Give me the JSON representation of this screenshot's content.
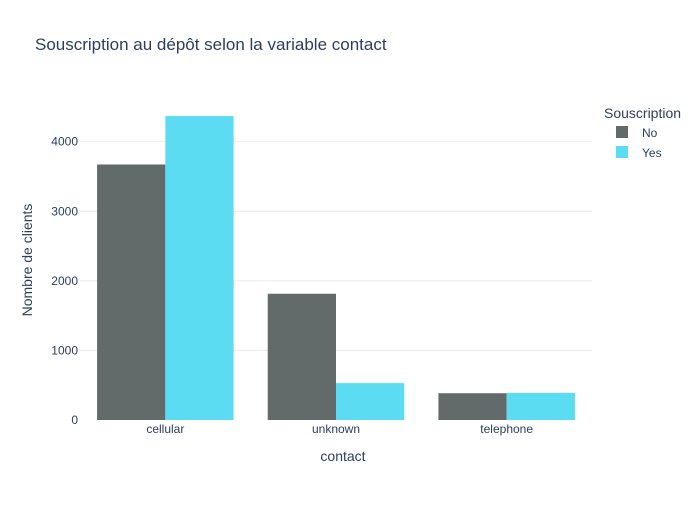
{
  "chart_data": {
    "type": "bar",
    "title": "Souscription au dépôt selon la variable contact",
    "xlabel": "contact",
    "ylabel": "Nombre de clients",
    "categories": [
      "cellular",
      "unknown",
      "telephone"
    ],
    "series": [
      {
        "name": "No",
        "values": [
          3673,
          1815,
          385
        ],
        "color": "#636a6a"
      },
      {
        "name": "Yes",
        "values": [
          4369,
          530,
          390
        ],
        "color": "#5bdcf2"
      }
    ],
    "ylim": [
      0,
      4600
    ],
    "yticks": [
      0,
      1000,
      2000,
      3000,
      4000
    ],
    "grid": true,
    "legend": {
      "title": "Souscription",
      "placement": "top-right"
    }
  }
}
